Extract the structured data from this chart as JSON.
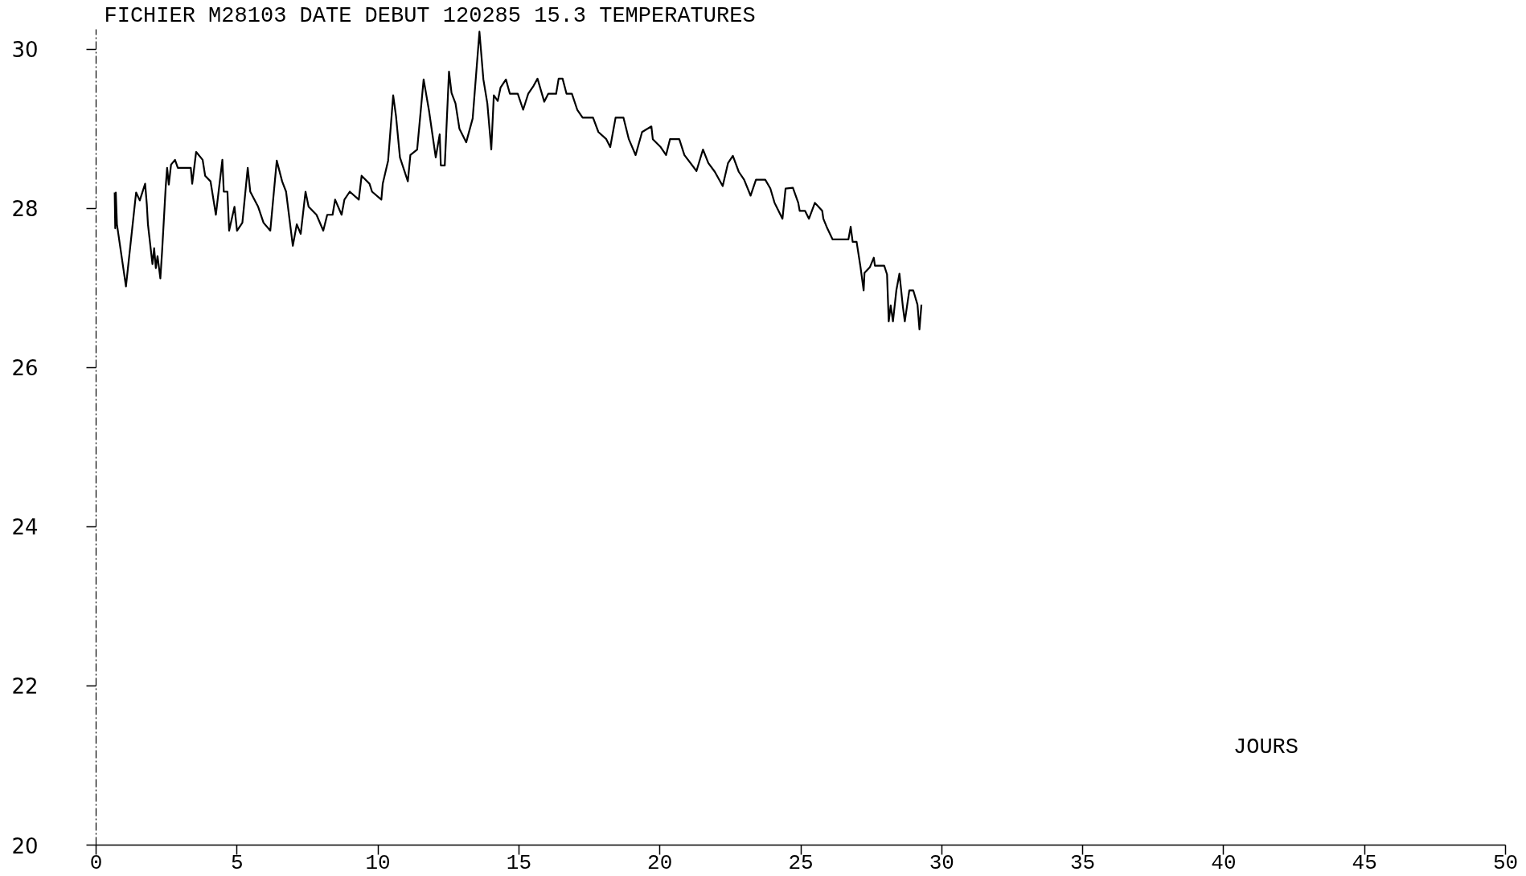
{
  "chart_data": {
    "type": "line",
    "title": "FICHIER M28103 DATE DEBUT 120285 15.3 TEMPERATURES",
    "xlabel": "JOURS",
    "x": [
      0.66,
      0.68,
      0.7,
      0.74,
      1.06,
      1.42,
      1.55,
      1.74,
      1.8,
      1.84,
      1.92,
      2.0,
      2.06,
      2.12,
      2.18,
      2.28,
      2.34,
      2.47,
      2.52,
      2.58,
      2.66,
      2.8,
      2.9,
      3.36,
      3.41,
      3.55,
      3.78,
      3.87,
      4.06,
      4.25,
      4.48,
      4.53,
      4.66,
      4.72,
      4.91,
      5.0,
      5.19,
      5.38,
      5.47,
      5.75,
      5.94,
      6.18,
      6.41,
      6.6,
      6.74,
      6.98,
      7.12,
      7.26,
      7.43,
      7.54,
      7.82,
      8.06,
      8.2,
      8.39,
      8.48,
      8.71,
      8.81,
      9.0,
      9.32,
      9.42,
      9.7,
      9.79,
      10.12,
      10.17,
      10.36,
      10.54,
      10.64,
      10.78,
      11.06,
      11.15,
      11.39,
      11.62,
      11.81,
      12.05,
      12.19,
      12.23,
      12.37,
      12.42,
      12.52,
      12.61,
      12.75,
      12.89,
      13.13,
      13.36,
      13.6,
      13.74,
      13.88,
      14.02,
      14.11,
      14.25,
      14.35,
      14.54,
      14.68,
      14.96,
      15.15,
      15.33,
      15.52,
      15.66,
      15.9,
      16.04,
      16.32,
      16.41,
      16.55,
      16.69,
      16.88,
      17.07,
      17.26,
      17.63,
      17.82,
      18.1,
      18.24,
      18.43,
      18.71,
      18.9,
      19.14,
      19.37,
      19.7,
      19.75,
      20.03,
      20.22,
      20.36,
      20.69,
      20.87,
      21.3,
      21.53,
      21.72,
      21.95,
      22.23,
      22.42,
      22.59,
      22.8,
      22.99,
      23.22,
      23.41,
      23.74,
      23.92,
      24.07,
      24.35,
      24.46,
      24.72,
      24.91,
      24.96,
      25.15,
      25.29,
      25.5,
      25.76,
      25.8,
      25.94,
      26.13,
      26.69,
      26.77,
      26.84,
      26.98,
      27.12,
      27.23,
      27.26,
      27.45,
      27.59,
      27.63,
      27.96,
      28.06,
      28.12,
      28.19,
      28.27,
      28.39,
      28.5,
      28.62,
      28.69,
      28.85,
      28.99,
      29.14,
      29.21,
      29.28
    ],
    "series": [
      {
        "color": "#000000",
        "values": [
          28.2,
          27.75,
          28.2,
          27.8,
          27.02,
          28.2,
          28.1,
          28.31,
          28.05,
          27.8,
          27.55,
          27.3,
          27.5,
          27.25,
          27.4,
          27.12,
          27.45,
          28.27,
          28.51,
          28.3,
          28.55,
          28.61,
          28.51,
          28.51,
          28.31,
          28.71,
          28.61,
          28.41,
          28.34,
          27.92,
          28.61,
          28.21,
          28.21,
          27.72,
          28.02,
          27.72,
          27.82,
          28.51,
          28.21,
          28.02,
          27.82,
          27.72,
          28.6,
          28.34,
          28.21,
          27.53,
          27.8,
          27.68,
          28.21,
          28.02,
          27.92,
          27.72,
          27.92,
          27.92,
          28.11,
          27.92,
          28.11,
          28.21,
          28.11,
          28.41,
          28.31,
          28.21,
          28.11,
          28.31,
          28.6,
          29.42,
          29.16,
          28.64,
          28.34,
          28.67,
          28.74,
          29.62,
          29.23,
          28.64,
          28.93,
          28.54,
          28.54,
          28.93,
          29.72,
          29.45,
          29.32,
          29.0,
          28.83,
          29.13,
          30.22,
          29.62,
          29.32,
          28.74,
          29.42,
          29.35,
          29.52,
          29.62,
          29.44,
          29.44,
          29.24,
          29.44,
          29.54,
          29.63,
          29.34,
          29.44,
          29.44,
          29.63,
          29.63,
          29.44,
          29.44,
          29.24,
          29.14,
          29.14,
          28.96,
          28.87,
          28.77,
          29.14,
          29.14,
          28.87,
          28.67,
          28.96,
          29.03,
          28.87,
          28.77,
          28.67,
          28.87,
          28.87,
          28.67,
          28.47,
          28.74,
          28.57,
          28.46,
          28.28,
          28.57,
          28.66,
          28.46,
          28.36,
          28.16,
          28.36,
          28.36,
          28.25,
          28.07,
          27.87,
          28.25,
          28.26,
          28.07,
          27.97,
          27.97,
          27.87,
          28.07,
          27.97,
          27.87,
          27.75,
          27.61,
          27.61,
          27.77,
          27.58,
          27.58,
          27.26,
          26.97,
          27.19,
          27.26,
          27.38,
          27.28,
          27.28,
          27.17,
          26.58,
          26.78,
          26.58,
          26.97,
          27.18,
          26.77,
          26.58,
          26.97,
          26.97,
          26.79,
          26.48,
          26.79
        ]
      }
    ],
    "xlim": [
      0,
      50
    ],
    "ylim": [
      20,
      30.25
    ],
    "xticks": [
      0,
      5,
      10,
      15,
      20,
      25,
      30,
      35,
      40,
      45,
      50
    ],
    "yticks": [
      20,
      22,
      24,
      26,
      28,
      30
    ]
  }
}
